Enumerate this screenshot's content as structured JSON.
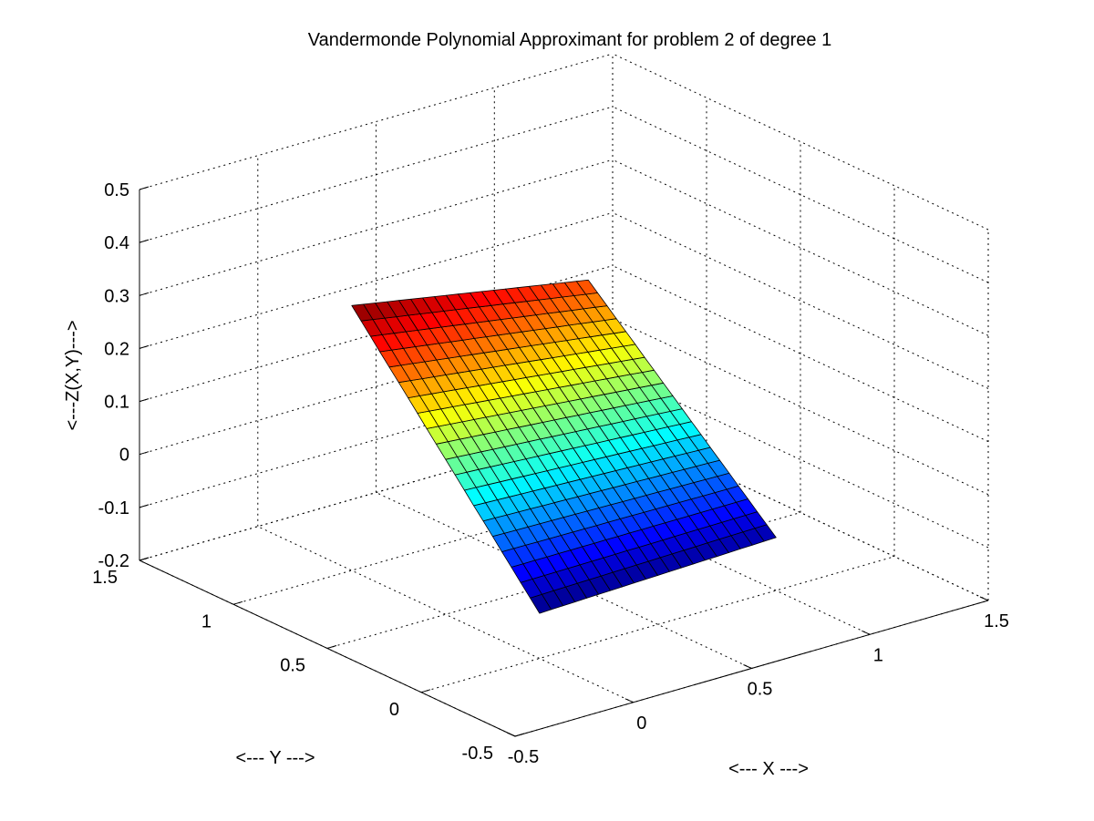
{
  "chart_data": {
    "type": "surface",
    "title": "Vandermonde Polynomial Approximant for problem 2 of degree 1",
    "xlabel": "<--- X --->",
    "ylabel": "<--- Y --->",
    "zlabel": "<---Z(X,Y)--->",
    "xlim": [
      -0.5,
      1.5
    ],
    "ylim": [
      -0.5,
      1.5
    ],
    "zlim": [
      -0.2,
      0.5
    ],
    "xticks": [
      -0.5,
      0,
      0.5,
      1,
      1.5
    ],
    "yticks": [
      -0.5,
      0,
      0.5,
      1,
      1.5
    ],
    "zticks": [
      -0.2,
      -0.1,
      0,
      0.1,
      0.2,
      0.3,
      0.4,
      0.5
    ],
    "xtick_labels": [
      "-0.5",
      "0",
      "0.5",
      "1",
      "1.5"
    ],
    "ytick_labels": [
      "-0.5",
      "0",
      "0.5",
      "1",
      "1.5"
    ],
    "ztick_labels": [
      "-0.2",
      "-0.1",
      "0",
      "0.1",
      "0.2",
      "0.3",
      "0.4",
      "0.5"
    ],
    "grid": true,
    "colormap": "jet",
    "surface": {
      "x_range": [
        0,
        1
      ],
      "y_range": [
        0,
        1
      ],
      "mesh_divisions": 20,
      "corners": [
        {
          "x": 0,
          "y": 0,
          "z": -0.115
        },
        {
          "x": 1,
          "y": 0,
          "z": -0.1
        },
        {
          "x": 0,
          "y": 1,
          "z": 0.3
        },
        {
          "x": 1,
          "y": 1,
          "z": 0.22
        }
      ]
    }
  }
}
